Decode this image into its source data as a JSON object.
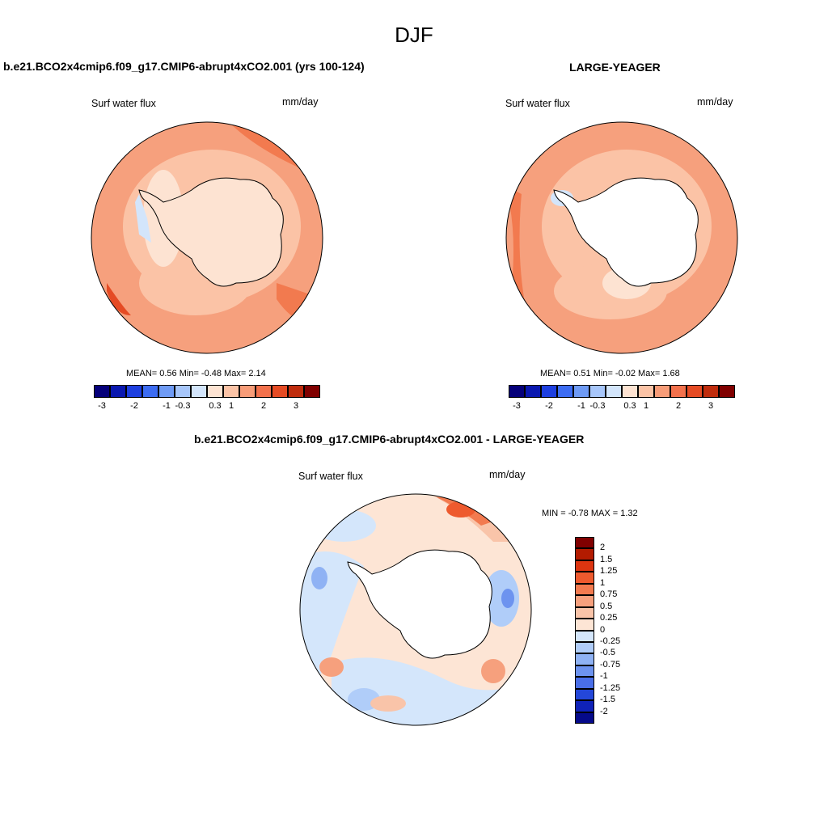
{
  "main_title": "DJF",
  "panels": [
    {
      "title": "b.e21.BCO2x4cmip6.f09_g17.CMIP6-abrupt4xCO2.001 (yrs 100-124)",
      "variable": "Surf water flux",
      "units": "mm/day",
      "stats": "MEAN=   0.56  Min=  -0.48  Max=   2.14",
      "colorbar": {
        "labels": [
          "-3",
          "-2",
          "-1",
          "-0.3",
          "0.3",
          "1",
          "2",
          "3"
        ]
      }
    },
    {
      "title": "LARGE-YEAGER",
      "variable": "Surf water flux",
      "units": "mm/day",
      "stats": "MEAN=   0.51  Min=  -0.02  Max=   1.68",
      "colorbar": {
        "labels": [
          "-3",
          "-2",
          "-1",
          "-0.3",
          "0.3",
          "1",
          "2",
          "3"
        ]
      }
    },
    {
      "title": "b.e21.BCO2x4cmip6.f09_g17.CMIP6-abrupt4xCO2.001 - LARGE-YEAGER",
      "variable": "Surf water flux",
      "units": "mm/day",
      "stats": "MIN =  -0.78 MAX =   1.32",
      "colorbar": {
        "labels": [
          "2",
          "1.5",
          "1.25",
          "1",
          "0.75",
          "0.5",
          "0.25",
          "0",
          "-0.25",
          "-0.5",
          "-0.75",
          "-1",
          "-1.25",
          "-1.5",
          "-2"
        ]
      }
    }
  ],
  "colors": {
    "abs_scale": [
      "#05007a",
      "#0a18b0",
      "#1d3fe0",
      "#3c6cf2",
      "#6f9bf5",
      "#a7c6fa",
      "#d3e5fb",
      "#fde3d2",
      "#fbc3a6",
      "#f79c78",
      "#f2714c",
      "#e54b24",
      "#bf2c0d",
      "#800000"
    ],
    "diff_scale": [
      "#800000",
      "#b31b00",
      "#dd3510",
      "#ee5a2e",
      "#f27a4f",
      "#f6a07d",
      "#f9c4a9",
      "#fde5d5",
      "#d4e6fb",
      "#b0cdf9",
      "#8fb2f4",
      "#6d93ef",
      "#4a6fe8",
      "#2447d9",
      "#0f22b8",
      "#050a8a"
    ],
    "land": "#ffffff",
    "coastline": "#000000"
  }
}
